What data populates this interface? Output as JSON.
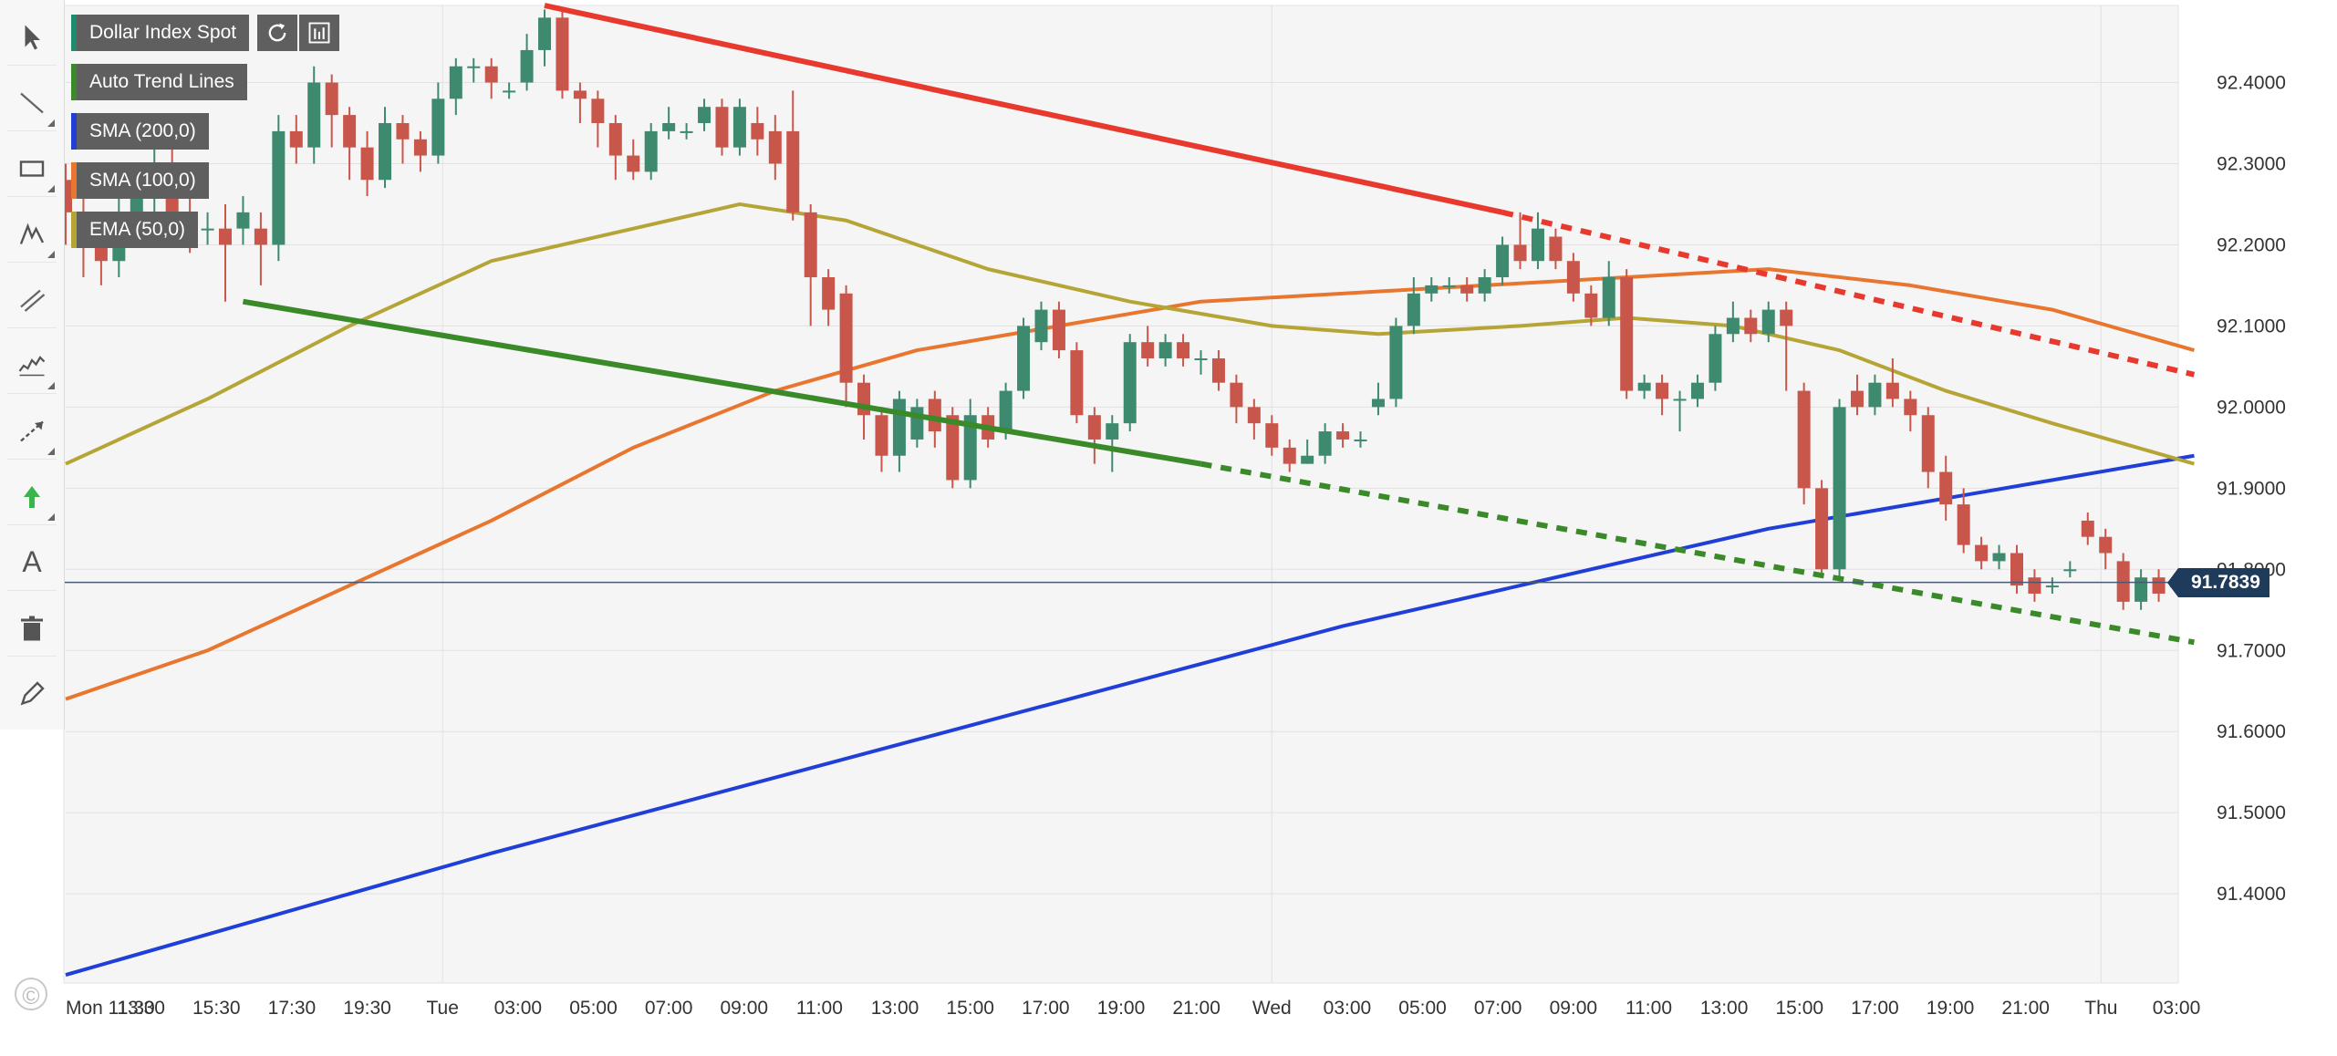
{
  "legend": {
    "symbol": "Dollar Index Spot",
    "auto_trend": "Auto Trend Lines",
    "sma200": "SMA (200,0)",
    "sma100": "SMA (100,0)",
    "ema50": "EMA (50,0)"
  },
  "toolbar": {
    "tools": [
      "cursor-icon",
      "line-tool-icon",
      "rectangle-tool-icon",
      "pen-tool-icon",
      "parallel-channel-icon",
      "indicator-icon",
      "ray-tool-icon",
      "arrow-up-icon",
      "text-tool-icon",
      "trash-icon",
      "pencil-icon"
    ],
    "text_tool_label": "A"
  },
  "colors": {
    "up_candle": "#3e8a6e",
    "down_candle": "#c9564a",
    "resistance_line": "#e8392e",
    "support_line": "#3a8a2a",
    "sma200": "#1f3fd6",
    "sma100": "#e8762e",
    "ema50": "#b5a536",
    "price_line": "#4a5a72"
  },
  "current_price": "91.7839",
  "copyright_symbol": "©",
  "chart_data": {
    "type": "candlestick",
    "title": "Dollar Index Spot",
    "ylim": [
      91.29,
      92.495
    ],
    "y_ticks": [
      "92.4000",
      "92.3000",
      "92.2000",
      "92.1000",
      "92.0000",
      "91.9000",
      "91.8000",
      "91.7000",
      "91.6000",
      "91.5000",
      "91.4000"
    ],
    "x_ticks": [
      "Mon 11:30",
      "13:30",
      "15:30",
      "17:30",
      "19:30",
      "Tue",
      "03:00",
      "05:00",
      "07:00",
      "09:00",
      "11:00",
      "13:00",
      "15:00",
      "17:00",
      "19:00",
      "21:00",
      "Wed",
      "03:00",
      "05:00",
      "07:00",
      "09:00",
      "11:00",
      "13:00",
      "15:00",
      "17:00",
      "19:00",
      "21:00",
      "Thu",
      "03:00"
    ],
    "x_range": [
      0,
      119
    ],
    "grid": true,
    "legend_position": "top-left",
    "candles": [
      [
        0,
        92.28,
        92.24,
        92.3,
        92.2
      ],
      [
        1,
        92.24,
        92.2,
        92.27,
        92.16
      ],
      [
        2,
        92.2,
        92.18,
        92.23,
        92.15
      ],
      [
        3,
        92.18,
        92.24,
        92.26,
        92.16
      ],
      [
        4,
        92.24,
        92.26,
        92.29,
        92.21
      ],
      [
        5,
        92.26,
        92.3,
        92.34,
        92.24
      ],
      [
        6,
        92.3,
        92.24,
        92.32,
        92.2
      ],
      [
        7,
        92.24,
        92.22,
        92.26,
        92.19
      ],
      [
        8,
        92.22,
        92.22,
        92.24,
        92.2
      ],
      [
        9,
        92.22,
        92.2,
        92.25,
        92.13
      ],
      [
        10,
        92.22,
        92.24,
        92.26,
        92.2
      ],
      [
        11,
        92.22,
        92.2,
        92.24,
        92.15
      ],
      [
        12,
        92.2,
        92.34,
        92.36,
        92.18
      ],
      [
        13,
        92.34,
        92.32,
        92.36,
        92.3
      ],
      [
        14,
        92.32,
        92.4,
        92.42,
        92.3
      ],
      [
        15,
        92.4,
        92.36,
        92.41,
        92.32
      ],
      [
        16,
        92.36,
        92.32,
        92.37,
        92.28
      ],
      [
        17,
        92.32,
        92.28,
        92.34,
        92.26
      ],
      [
        18,
        92.28,
        92.35,
        92.37,
        92.27
      ],
      [
        19,
        92.35,
        92.33,
        92.36,
        92.3
      ],
      [
        20,
        92.33,
        92.31,
        92.34,
        92.29
      ],
      [
        21,
        92.31,
        92.38,
        92.4,
        92.3
      ],
      [
        22,
        92.38,
        92.42,
        92.43,
        92.36
      ],
      [
        23,
        92.42,
        92.42,
        92.43,
        92.4
      ],
      [
        24,
        92.42,
        92.4,
        92.43,
        92.38
      ],
      [
        25,
        92.39,
        92.39,
        92.4,
        92.38
      ],
      [
        26,
        92.4,
        92.44,
        92.46,
        92.39
      ],
      [
        27,
        92.44,
        92.48,
        92.49,
        92.42
      ],
      [
        28,
        92.48,
        92.39,
        92.49,
        92.38
      ],
      [
        29,
        92.39,
        92.38,
        92.4,
        92.35
      ],
      [
        30,
        92.38,
        92.35,
        92.39,
        92.32
      ],
      [
        31,
        92.35,
        92.31,
        92.36,
        92.28
      ],
      [
        32,
        92.31,
        92.29,
        92.33,
        92.28
      ],
      [
        33,
        92.29,
        92.34,
        92.35,
        92.28
      ],
      [
        34,
        92.34,
        92.35,
        92.37,
        92.33
      ],
      [
        35,
        92.34,
        92.34,
        92.35,
        92.33
      ],
      [
        36,
        92.35,
        92.37,
        92.38,
        92.34
      ],
      [
        37,
        92.37,
        92.32,
        92.38,
        92.31
      ],
      [
        38,
        92.32,
        92.37,
        92.38,
        92.31
      ],
      [
        39,
        92.35,
        92.33,
        92.37,
        92.31
      ],
      [
        40,
        92.34,
        92.3,
        92.36,
        92.28
      ],
      [
        41,
        92.34,
        92.24,
        92.39,
        92.23
      ],
      [
        42,
        92.24,
        92.16,
        92.25,
        92.1
      ],
      [
        43,
        92.16,
        92.12,
        92.17,
        92.1
      ],
      [
        44,
        92.14,
        92.03,
        92.15,
        92.0
      ],
      [
        45,
        92.03,
        91.99,
        92.04,
        91.96
      ],
      [
        46,
        91.99,
        91.94,
        92.0,
        91.92
      ],
      [
        47,
        91.94,
        92.01,
        92.02,
        91.92
      ],
      [
        48,
        91.96,
        92.0,
        92.01,
        91.95
      ],
      [
        49,
        92.01,
        91.97,
        92.02,
        91.95
      ],
      [
        50,
        91.99,
        91.91,
        92.0,
        91.9
      ],
      [
        51,
        91.91,
        91.99,
        92.01,
        91.9
      ],
      [
        52,
        91.99,
        91.96,
        92.0,
        91.95
      ],
      [
        53,
        91.97,
        92.02,
        92.03,
        91.96
      ],
      [
        54,
        92.02,
        92.1,
        92.11,
        92.01
      ],
      [
        55,
        92.08,
        92.12,
        92.13,
        92.07
      ],
      [
        56,
        92.12,
        92.07,
        92.13,
        92.06
      ],
      [
        57,
        92.07,
        91.99,
        92.08,
        91.98
      ],
      [
        58,
        91.99,
        91.96,
        92.0,
        91.93
      ],
      [
        59,
        91.96,
        91.98,
        91.99,
        91.92
      ],
      [
        60,
        91.98,
        92.08,
        92.09,
        91.97
      ],
      [
        61,
        92.08,
        92.06,
        92.1,
        92.05
      ],
      [
        62,
        92.06,
        92.08,
        92.09,
        92.05
      ],
      [
        63,
        92.08,
        92.06,
        92.09,
        92.05
      ],
      [
        64,
        92.06,
        92.06,
        92.07,
        92.04
      ],
      [
        65,
        92.06,
        92.03,
        92.07,
        92.02
      ],
      [
        66,
        92.03,
        92.0,
        92.04,
        91.98
      ],
      [
        67,
        92.0,
        91.98,
        92.01,
        91.96
      ],
      [
        68,
        91.98,
        91.95,
        91.99,
        91.94
      ],
      [
        69,
        91.95,
        91.93,
        91.96,
        91.92
      ],
      [
        70,
        91.93,
        91.94,
        91.96,
        91.93
      ],
      [
        71,
        91.94,
        91.97,
        91.98,
        91.93
      ],
      [
        72,
        91.97,
        91.96,
        91.98,
        91.95
      ],
      [
        73,
        91.96,
        91.96,
        91.97,
        91.95
      ],
      [
        74,
        92.0,
        92.01,
        92.03,
        91.99
      ],
      [
        75,
        92.01,
        92.1,
        92.11,
        92.0
      ],
      [
        76,
        92.1,
        92.14,
        92.16,
        92.09
      ],
      [
        77,
        92.14,
        92.15,
        92.16,
        92.13
      ],
      [
        78,
        92.15,
        92.15,
        92.16,
        92.14
      ],
      [
        79,
        92.15,
        92.14,
        92.16,
        92.13
      ],
      [
        80,
        92.14,
        92.16,
        92.17,
        92.13
      ],
      [
        81,
        92.16,
        92.2,
        92.21,
        92.15
      ],
      [
        82,
        92.2,
        92.18,
        92.24,
        92.17
      ],
      [
        83,
        92.18,
        92.22,
        92.24,
        92.17
      ],
      [
        84,
        92.21,
        92.18,
        92.22,
        92.17
      ],
      [
        85,
        92.18,
        92.14,
        92.19,
        92.13
      ],
      [
        86,
        92.14,
        92.11,
        92.15,
        92.1
      ],
      [
        87,
        92.11,
        92.16,
        92.18,
        92.1
      ],
      [
        88,
        92.16,
        92.02,
        92.17,
        92.01
      ],
      [
        89,
        92.02,
        92.03,
        92.04,
        92.01
      ],
      [
        90,
        92.03,
        92.01,
        92.04,
        91.99
      ],
      [
        91,
        92.01,
        92.01,
        92.02,
        91.97
      ],
      [
        92,
        92.01,
        92.03,
        92.04,
        92.0
      ],
      [
        93,
        92.03,
        92.09,
        92.1,
        92.02
      ],
      [
        94,
        92.09,
        92.11,
        92.13,
        92.08
      ],
      [
        95,
        92.11,
        92.09,
        92.12,
        92.08
      ],
      [
        96,
        92.09,
        92.12,
        92.13,
        92.08
      ],
      [
        97,
        92.12,
        92.1,
        92.13,
        92.02
      ],
      [
        98,
        92.02,
        91.9,
        92.03,
        91.88
      ],
      [
        99,
        91.9,
        91.8,
        91.91,
        91.79
      ],
      [
        100,
        91.8,
        92.0,
        92.01,
        91.79
      ],
      [
        101,
        92.02,
        92.0,
        92.04,
        91.99
      ],
      [
        102,
        92.0,
        92.03,
        92.04,
        91.99
      ],
      [
        103,
        92.03,
        92.01,
        92.06,
        92.0
      ],
      [
        104,
        92.01,
        91.99,
        92.02,
        91.97
      ],
      [
        105,
        91.99,
        91.92,
        92.0,
        91.9
      ],
      [
        106,
        91.92,
        91.88,
        91.94,
        91.86
      ],
      [
        107,
        91.88,
        91.83,
        91.9,
        91.82
      ],
      [
        108,
        91.83,
        91.81,
        91.84,
        91.8
      ],
      [
        109,
        91.81,
        91.82,
        91.83,
        91.8
      ],
      [
        110,
        91.82,
        91.78,
        91.83,
        91.77
      ],
      [
        111,
        91.79,
        91.77,
        91.8,
        91.76
      ],
      [
        112,
        91.78,
        91.78,
        91.79,
        91.77
      ],
      [
        113,
        91.8,
        91.8,
        91.81,
        91.79
      ],
      [
        114,
        91.86,
        91.84,
        91.87,
        91.83
      ],
      [
        115,
        91.84,
        91.82,
        91.85,
        91.8
      ],
      [
        116,
        91.81,
        91.76,
        91.82,
        91.75
      ],
      [
        117,
        91.76,
        91.79,
        91.8,
        91.75
      ],
      [
        118,
        91.79,
        91.77,
        91.8,
        91.76
      ],
      [
        119,
        91.78,
        91.78,
        91.79,
        91.77
      ]
    ],
    "indicators": [
      {
        "name": "SMA (200,0)",
        "points": [
          [
            0,
            91.3
          ],
          [
            24,
            91.45
          ],
          [
            48,
            91.59
          ],
          [
            72,
            91.73
          ],
          [
            96,
            91.85
          ],
          [
            120,
            91.94
          ]
        ]
      },
      {
        "name": "SMA (100,0)",
        "points": [
          [
            0,
            91.64
          ],
          [
            8,
            91.7
          ],
          [
            16,
            91.78
          ],
          [
            24,
            91.86
          ],
          [
            32,
            91.95
          ],
          [
            40,
            92.02
          ],
          [
            48,
            92.07
          ],
          [
            56,
            92.1
          ],
          [
            64,
            92.13
          ],
          [
            72,
            92.14
          ],
          [
            80,
            92.15
          ],
          [
            88,
            92.16
          ],
          [
            96,
            92.17
          ],
          [
            104,
            92.15
          ],
          [
            112,
            92.12
          ],
          [
            120,
            92.07
          ]
        ]
      },
      {
        "name": "EMA (50,0)",
        "points": [
          [
            0,
            91.93
          ],
          [
            8,
            92.01
          ],
          [
            16,
            92.1
          ],
          [
            24,
            92.18
          ],
          [
            32,
            92.22
          ],
          [
            38,
            92.25
          ],
          [
            44,
            92.23
          ],
          [
            52,
            92.17
          ],
          [
            60,
            92.13
          ],
          [
            68,
            92.1
          ],
          [
            74,
            92.09
          ],
          [
            82,
            92.1
          ],
          [
            88,
            92.11
          ],
          [
            94,
            92.1
          ],
          [
            100,
            92.07
          ],
          [
            106,
            92.02
          ],
          [
            112,
            91.98
          ],
          [
            120,
            91.93
          ]
        ]
      }
    ],
    "trend_lines": [
      {
        "name": "resistance",
        "solid": [
          [
            27,
            92.495
          ],
          [
            81,
            92.24
          ]
        ],
        "dashed": [
          [
            81,
            92.24
          ],
          [
            120,
            92.04
          ]
        ]
      },
      {
        "name": "support",
        "solid": [
          [
            10,
            92.13
          ],
          [
            64,
            91.93
          ]
        ],
        "dashed": [
          [
            64,
            91.93
          ],
          [
            120,
            91.71
          ]
        ]
      }
    ]
  }
}
